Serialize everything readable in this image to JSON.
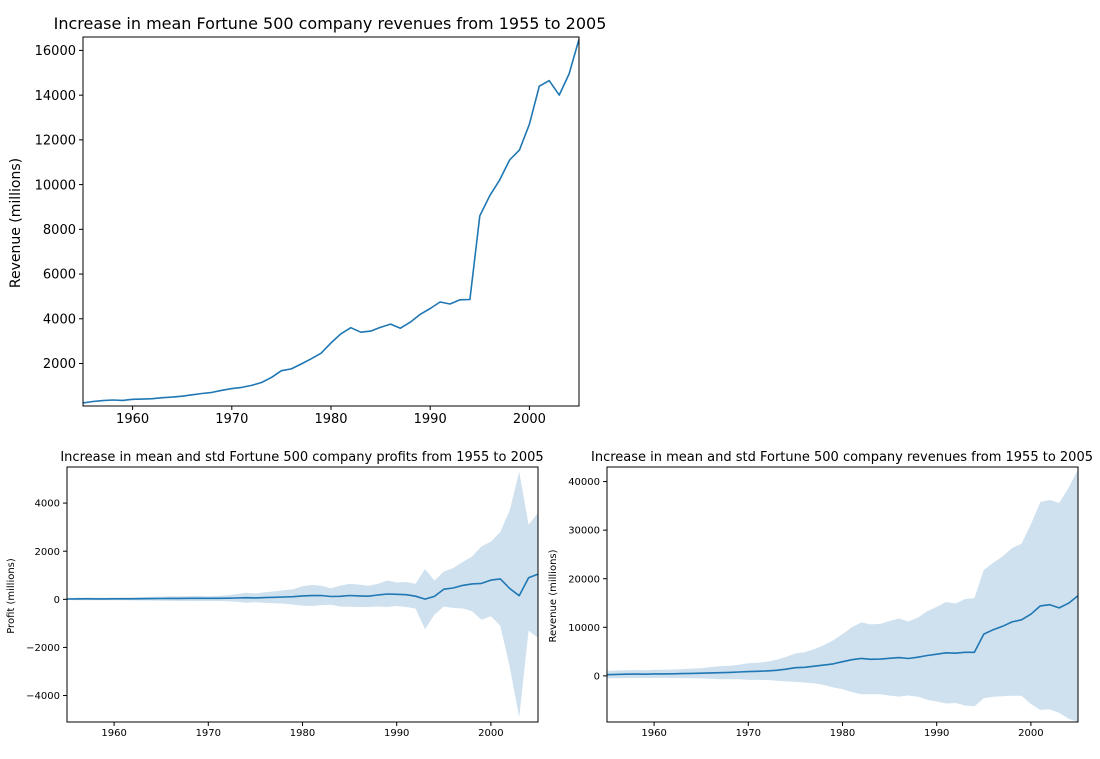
{
  "chart_data": [
    {
      "type": "line",
      "title": "Increase in mean Fortune 500 company revenues from 1955 to 2005",
      "xlabel": "",
      "ylabel": "Revenue (millions)",
      "xlim": [
        1955,
        2005
      ],
      "ylim": [
        100,
        16600
      ],
      "xticks": [
        "1960",
        "1970",
        "1980",
        "1990",
        "2000"
      ],
      "yticks": [
        "2000",
        "4000",
        "6000",
        "8000",
        "10000",
        "12000",
        "14000",
        "16000"
      ],
      "grid": false,
      "color": "#1f77b4",
      "x": [
        1955,
        1956,
        1957,
        1958,
        1959,
        1960,
        1961,
        1962,
        1963,
        1964,
        1965,
        1966,
        1967,
        1968,
        1969,
        1970,
        1971,
        1972,
        1973,
        1974,
        1975,
        1976,
        1977,
        1978,
        1979,
        1980,
        1981,
        1982,
        1983,
        1984,
        1985,
        1986,
        1987,
        1988,
        1989,
        1990,
        1991,
        1992,
        1993,
        1994,
        1995,
        1996,
        1997,
        1998,
        1999,
        2000,
        2001,
        2002,
        2003,
        2004,
        2005
      ],
      "series": [
        {
          "values": [
            240,
            300,
            340,
            370,
            350,
            400,
            410,
            425,
            470,
            500,
            540,
            600,
            660,
            710,
            800,
            880,
            930,
            1020,
            1150,
            1380,
            1680,
            1760,
            1980,
            2210,
            2460,
            2920,
            3330,
            3600,
            3400,
            3450,
            3620,
            3760,
            3580,
            3850,
            4200,
            4460,
            4750,
            4660,
            4850,
            4860,
            8600,
            9500,
            10200,
            11100,
            11550,
            12700,
            14400,
            14650,
            14000,
            14950,
            16500
          ]
        }
      ]
    },
    {
      "type": "area",
      "title": "Increase in mean and std Fortune 500 company profits from 1955 to 2005",
      "xlabel": "",
      "ylabel": "Profit (millions)",
      "xlim": [
        1955,
        2005
      ],
      "ylim": [
        -5100,
        5500
      ],
      "xticks": [
        "1960",
        "1970",
        "1980",
        "1990",
        "2000"
      ],
      "yticks": [
        "−4000",
        "−2000",
        "0",
        "2000",
        "4000"
      ],
      "grid": false,
      "color": "#1f77b4",
      "band_color": "#cfe1ef",
      "x": [
        1955,
        1956,
        1957,
        1958,
        1959,
        1960,
        1961,
        1962,
        1963,
        1964,
        1965,
        1966,
        1967,
        1968,
        1969,
        1970,
        1971,
        1972,
        1973,
        1974,
        1975,
        1976,
        1977,
        1978,
        1979,
        1980,
        1981,
        1982,
        1983,
        1984,
        1985,
        1986,
        1987,
        1988,
        1989,
        1990,
        1991,
        1992,
        1993,
        1994,
        1995,
        1996,
        1997,
        1998,
        1999,
        2000,
        2001,
        2002,
        2003,
        2004,
        2005
      ],
      "series": [
        {
          "name": "mean",
          "values": [
            15,
            18,
            20,
            19,
            17,
            20,
            20,
            22,
            25,
            28,
            32,
            36,
            38,
            40,
            42,
            40,
            40,
            45,
            55,
            65,
            60,
            70,
            85,
            95,
            110,
            140,
            155,
            160,
            115,
            125,
            160,
            140,
            130,
            180,
            220,
            210,
            190,
            130,
            10,
            120,
            420,
            470,
            580,
            640,
            660,
            800,
            850,
            450,
            150,
            900,
            1050
          ]
        },
        {
          "name": "mean+std",
          "values": [
            60,
            70,
            75,
            75,
            70,
            75,
            80,
            85,
            95,
            105,
            115,
            125,
            130,
            135,
            140,
            130,
            140,
            170,
            220,
            270,
            240,
            290,
            330,
            380,
            420,
            540,
            600,
            560,
            460,
            560,
            650,
            610,
            560,
            640,
            780,
            700,
            720,
            640,
            1260,
            780,
            1150,
            1300,
            1550,
            1780,
            2200,
            2400,
            2800,
            3700,
            5300,
            3100,
            3600
          ]
        },
        {
          "name": "mean-std",
          "values": [
            -30,
            -35,
            -40,
            -40,
            -38,
            -40,
            -40,
            -45,
            -50,
            -55,
            -60,
            -65,
            -70,
            -70,
            -75,
            -70,
            -70,
            -80,
            -100,
            -140,
            -120,
            -150,
            -160,
            -180,
            -220,
            -260,
            -280,
            -240,
            -230,
            -300,
            -310,
            -320,
            -320,
            -300,
            -320,
            -280,
            -320,
            -380,
            -1240,
            -640,
            -300,
            -360,
            -380,
            -500,
            -850,
            -700,
            -1100,
            -2800,
            -4900,
            -1300,
            -1600
          ]
        }
      ]
    },
    {
      "type": "area",
      "title": "Increase in mean and std Fortune 500 company revenues from 1955 to 2005",
      "xlabel": "",
      "ylabel": "Revenue (millions)",
      "xlim": [
        1955,
        2005
      ],
      "ylim": [
        -9500,
        43000
      ],
      "xticks": [
        "1960",
        "1970",
        "1980",
        "1990",
        "2000"
      ],
      "yticks": [
        "0",
        "10000",
        "20000",
        "30000",
        "40000"
      ],
      "grid": false,
      "color": "#1f77b4",
      "band_color": "#cfe1ef",
      "x": [
        1955,
        1956,
        1957,
        1958,
        1959,
        1960,
        1961,
        1962,
        1963,
        1964,
        1965,
        1966,
        1967,
        1968,
        1969,
        1970,
        1971,
        1972,
        1973,
        1974,
        1975,
        1976,
        1977,
        1978,
        1979,
        1980,
        1981,
        1982,
        1983,
        1984,
        1985,
        1986,
        1987,
        1988,
        1989,
        1990,
        1991,
        1992,
        1993,
        1994,
        1995,
        1996,
        1997,
        1998,
        1999,
        2000,
        2001,
        2002,
        2003,
        2004,
        2005
      ],
      "series": [
        {
          "name": "mean",
          "values": [
            240,
            300,
            340,
            370,
            350,
            400,
            410,
            425,
            470,
            500,
            540,
            600,
            660,
            710,
            800,
            880,
            930,
            1020,
            1150,
            1380,
            1680,
            1760,
            1980,
            2210,
            2460,
            2920,
            3330,
            3600,
            3400,
            3450,
            3620,
            3760,
            3580,
            3850,
            4200,
            4460,
            4750,
            4660,
            4850,
            4860,
            8600,
            9500,
            10200,
            11100,
            11550,
            12700,
            14400,
            14650,
            14000,
            14950,
            16500
          ]
        },
        {
          "name": "mean+std",
          "values": [
            1000,
            1100,
            1150,
            1200,
            1150,
            1250,
            1250,
            1300,
            1400,
            1500,
            1600,
            1800,
            2000,
            2100,
            2300,
            2600,
            2700,
            2900,
            3300,
            3900,
            4600,
            4900,
            5500,
            6300,
            7300,
            8600,
            10000,
            11000,
            10600,
            10700,
            11300,
            11800,
            11200,
            12000,
            13300,
            14200,
            15200,
            14900,
            15800,
            16000,
            21800,
            23300,
            24600,
            26300,
            27200,
            31200,
            35800,
            36200,
            35600,
            38700,
            42500
          ]
        },
        {
          "name": "mean-std",
          "values": [
            -500,
            -500,
            -470,
            -460,
            -450,
            -450,
            -430,
            -450,
            -460,
            -500,
            -520,
            -600,
            -680,
            -680,
            -700,
            -840,
            -840,
            -860,
            -1000,
            -1140,
            -1240,
            -1380,
            -1540,
            -1880,
            -2380,
            -2760,
            -3340,
            -3800,
            -3800,
            -3800,
            -4060,
            -4280,
            -4040,
            -4300,
            -4900,
            -5280,
            -5700,
            -5580,
            -6100,
            -6280,
            -4600,
            -4300,
            -4200,
            -4100,
            -4100,
            -5800,
            -7000,
            -6900,
            -7600,
            -8800,
            -9500
          ]
        }
      ]
    }
  ]
}
